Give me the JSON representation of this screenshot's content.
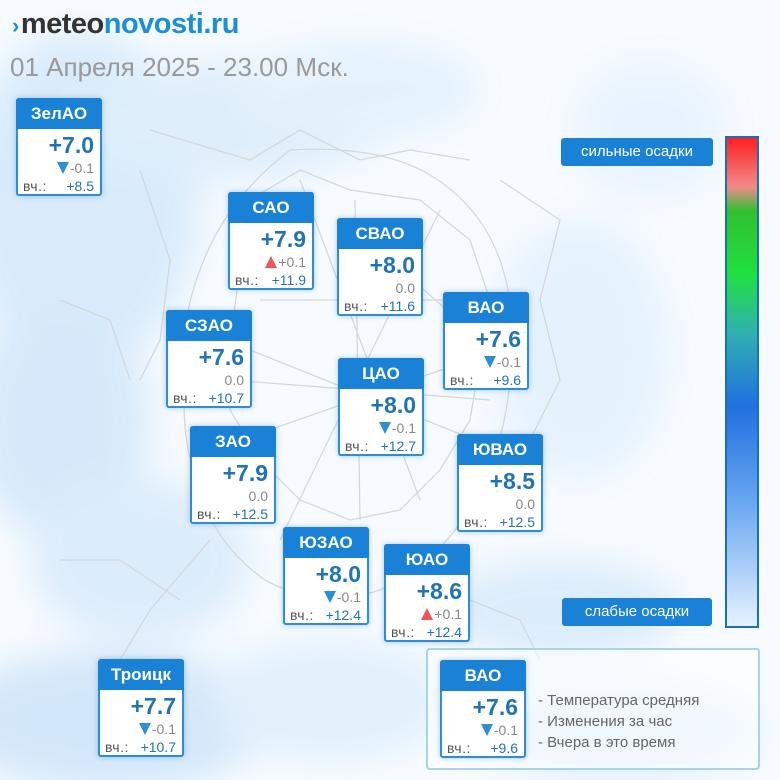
{
  "header": {
    "brand_mark": "›",
    "brand_part1": "meteo",
    "brand_part2": "novosti.ru",
    "subtitle": "01 Апреля 2025 - 23.00 Мск."
  },
  "colors": {
    "card_header": "#1a82d6",
    "temperature_text": "#1f73b7",
    "arrow_down": "#2a8fd8",
    "arrow_up": "#ee5555"
  },
  "districts": [
    {
      "name": "ЗелАО",
      "temp": "+7.0",
      "change_dir": "down",
      "change": "-0.1",
      "yesterday_label": "вч.:",
      "yesterday": "+8.5"
    },
    {
      "name": "САО",
      "temp": "+7.9",
      "change_dir": "up",
      "change": "+0.1",
      "yesterday_label": "вч.:",
      "yesterday": "+11.9"
    },
    {
      "name": "СВАО",
      "temp": "+8.0",
      "change_dir": "none",
      "change": "0.0",
      "yesterday_label": "вч.:",
      "yesterday": "+11.6"
    },
    {
      "name": "ВАО",
      "temp": "+7.6",
      "change_dir": "down",
      "change": "-0.1",
      "yesterday_label": "вч.:",
      "yesterday": "+9.6"
    },
    {
      "name": "СЗАО",
      "temp": "+7.6",
      "change_dir": "none",
      "change": "0.0",
      "yesterday_label": "вч.:",
      "yesterday": "+10.7"
    },
    {
      "name": "ЦАО",
      "temp": "+8.0",
      "change_dir": "down",
      "change": "-0.1",
      "yesterday_label": "вч.:",
      "yesterday": "+12.7"
    },
    {
      "name": "ЗАО",
      "temp": "+7.9",
      "change_dir": "none",
      "change": "0.0",
      "yesterday_label": "вч.:",
      "yesterday": "+12.5"
    },
    {
      "name": "ЮВАО",
      "temp": "+8.5",
      "change_dir": "none",
      "change": "0.0",
      "yesterday_label": "вч.:",
      "yesterday": "+12.5"
    },
    {
      "name": "ЮЗАО",
      "temp": "+8.0",
      "change_dir": "down",
      "change": "-0.1",
      "yesterday_label": "вч.:",
      "yesterday": "+12.4"
    },
    {
      "name": "ЮАО",
      "temp": "+8.6",
      "change_dir": "up",
      "change": "+0.1",
      "yesterday_label": "вч.:",
      "yesterday": "+12.4"
    },
    {
      "name": "Троицк",
      "temp": "+7.7",
      "change_dir": "down",
      "change": "-0.1",
      "yesterday_label": "вч.:",
      "yesterday": "+10.7"
    }
  ],
  "precip_scale": {
    "high_label": "сильные осадки",
    "low_label": "слабые осадки",
    "gradient_colors": [
      "#ff2020",
      "#f08a8a",
      "#30c030",
      "#20e040",
      "#30b0b0",
      "#2070e0",
      "#6aa8f0",
      "#e6f2ff"
    ]
  },
  "legend": {
    "sample": {
      "name": "ВАО",
      "temp": "+7.6",
      "change_dir": "down",
      "change": "-0.1",
      "yesterday_label": "вч.:",
      "yesterday": "+9.6"
    },
    "lines": [
      "- Температура средняя",
      "- Изменения за час",
      "- Вчера в это время"
    ]
  }
}
